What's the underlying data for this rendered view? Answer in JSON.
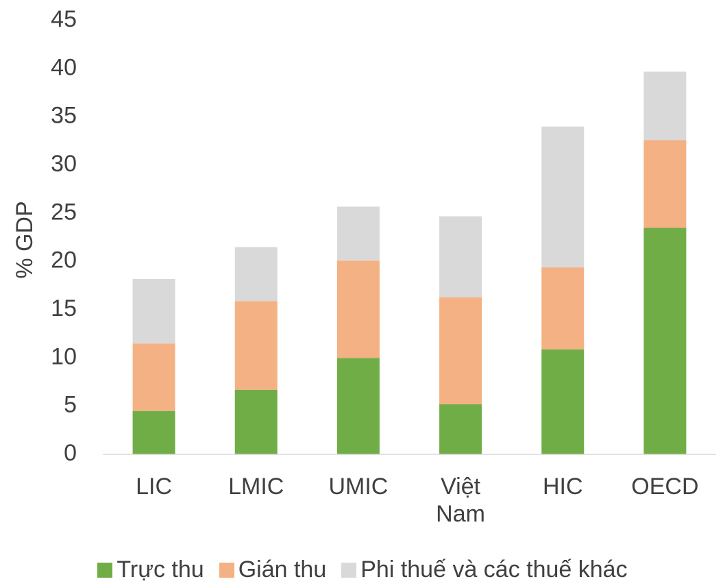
{
  "chart_data": {
    "type": "stacked_bar",
    "y_label": "% GDP",
    "categories": [
      "LIC",
      "LMIC",
      "UMIC",
      "Việt Nam",
      "HIC",
      "OECD"
    ],
    "series": [
      {
        "name": "Trực thu",
        "color": "#70ad47",
        "values": [
          4.5,
          6.7,
          10.0,
          5.2,
          10.9,
          23.5
        ]
      },
      {
        "name": "Gián thu",
        "color": "#f4b183",
        "values": [
          7.0,
          9.2,
          10.1,
          11.1,
          8.5,
          9.1
        ]
      },
      {
        "name": "Phi thuế và các thuế khác",
        "color": "#d9d9d9",
        "values": [
          6.7,
          5.6,
          5.6,
          8.4,
          14.6,
          7.1
        ]
      }
    ],
    "ylim": [
      0,
      45
    ],
    "yticks": [
      0,
      5,
      10,
      15,
      20,
      25,
      30,
      35,
      40,
      45
    ],
    "grid": false
  }
}
